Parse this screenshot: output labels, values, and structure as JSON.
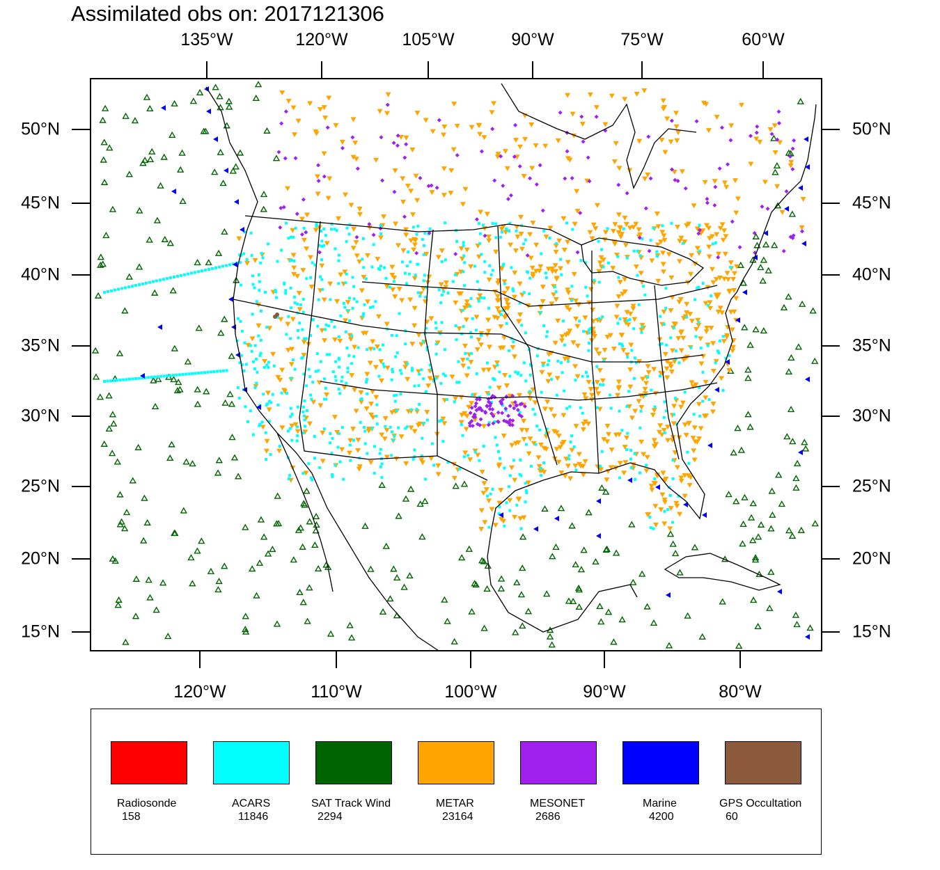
{
  "title": "Assimilated obs on: 2017121306",
  "axes": {
    "top_lon_labels": [
      "135°W",
      "120°W",
      "105°W",
      "90°W",
      "75°W",
      "60°W"
    ],
    "bottom_lon_labels": [
      "120°W",
      "110°W",
      "100°W",
      "90°W",
      "80°W"
    ],
    "left_lat_labels": [
      "50°N",
      "45°N",
      "40°N",
      "35°N",
      "30°N",
      "25°N",
      "20°N",
      "15°N"
    ],
    "right_lat_labels": [
      "50°N",
      "45°N",
      "40°N",
      "35°N",
      "30°N",
      "25°N",
      "20°N",
      "15°N"
    ]
  },
  "legend": [
    {
      "name": "Radiosonde",
      "count": "158",
      "color": "#ff0000",
      "symbol": "dot"
    },
    {
      "name": "ACARS",
      "count": "11846",
      "color": "#00ffff",
      "symbol": "square"
    },
    {
      "name": "SAT Track Wind",
      "count": "2294",
      "color": "#006400",
      "symbol": "triangle-up"
    },
    {
      "name": "METAR",
      "count": "23164",
      "color": "#ffa500",
      "symbol": "triangle-down"
    },
    {
      "name": "MESONET",
      "count": "2686",
      "color": "#a020f0",
      "symbol": "diamond"
    },
    {
      "name": "Marine",
      "count": "4200",
      "color": "#0000ff",
      "symbol": "triangle-left"
    },
    {
      "name": "GPS Occultation",
      "count": "60",
      "color": "#8b5a3c",
      "symbol": "dot"
    }
  ]
}
